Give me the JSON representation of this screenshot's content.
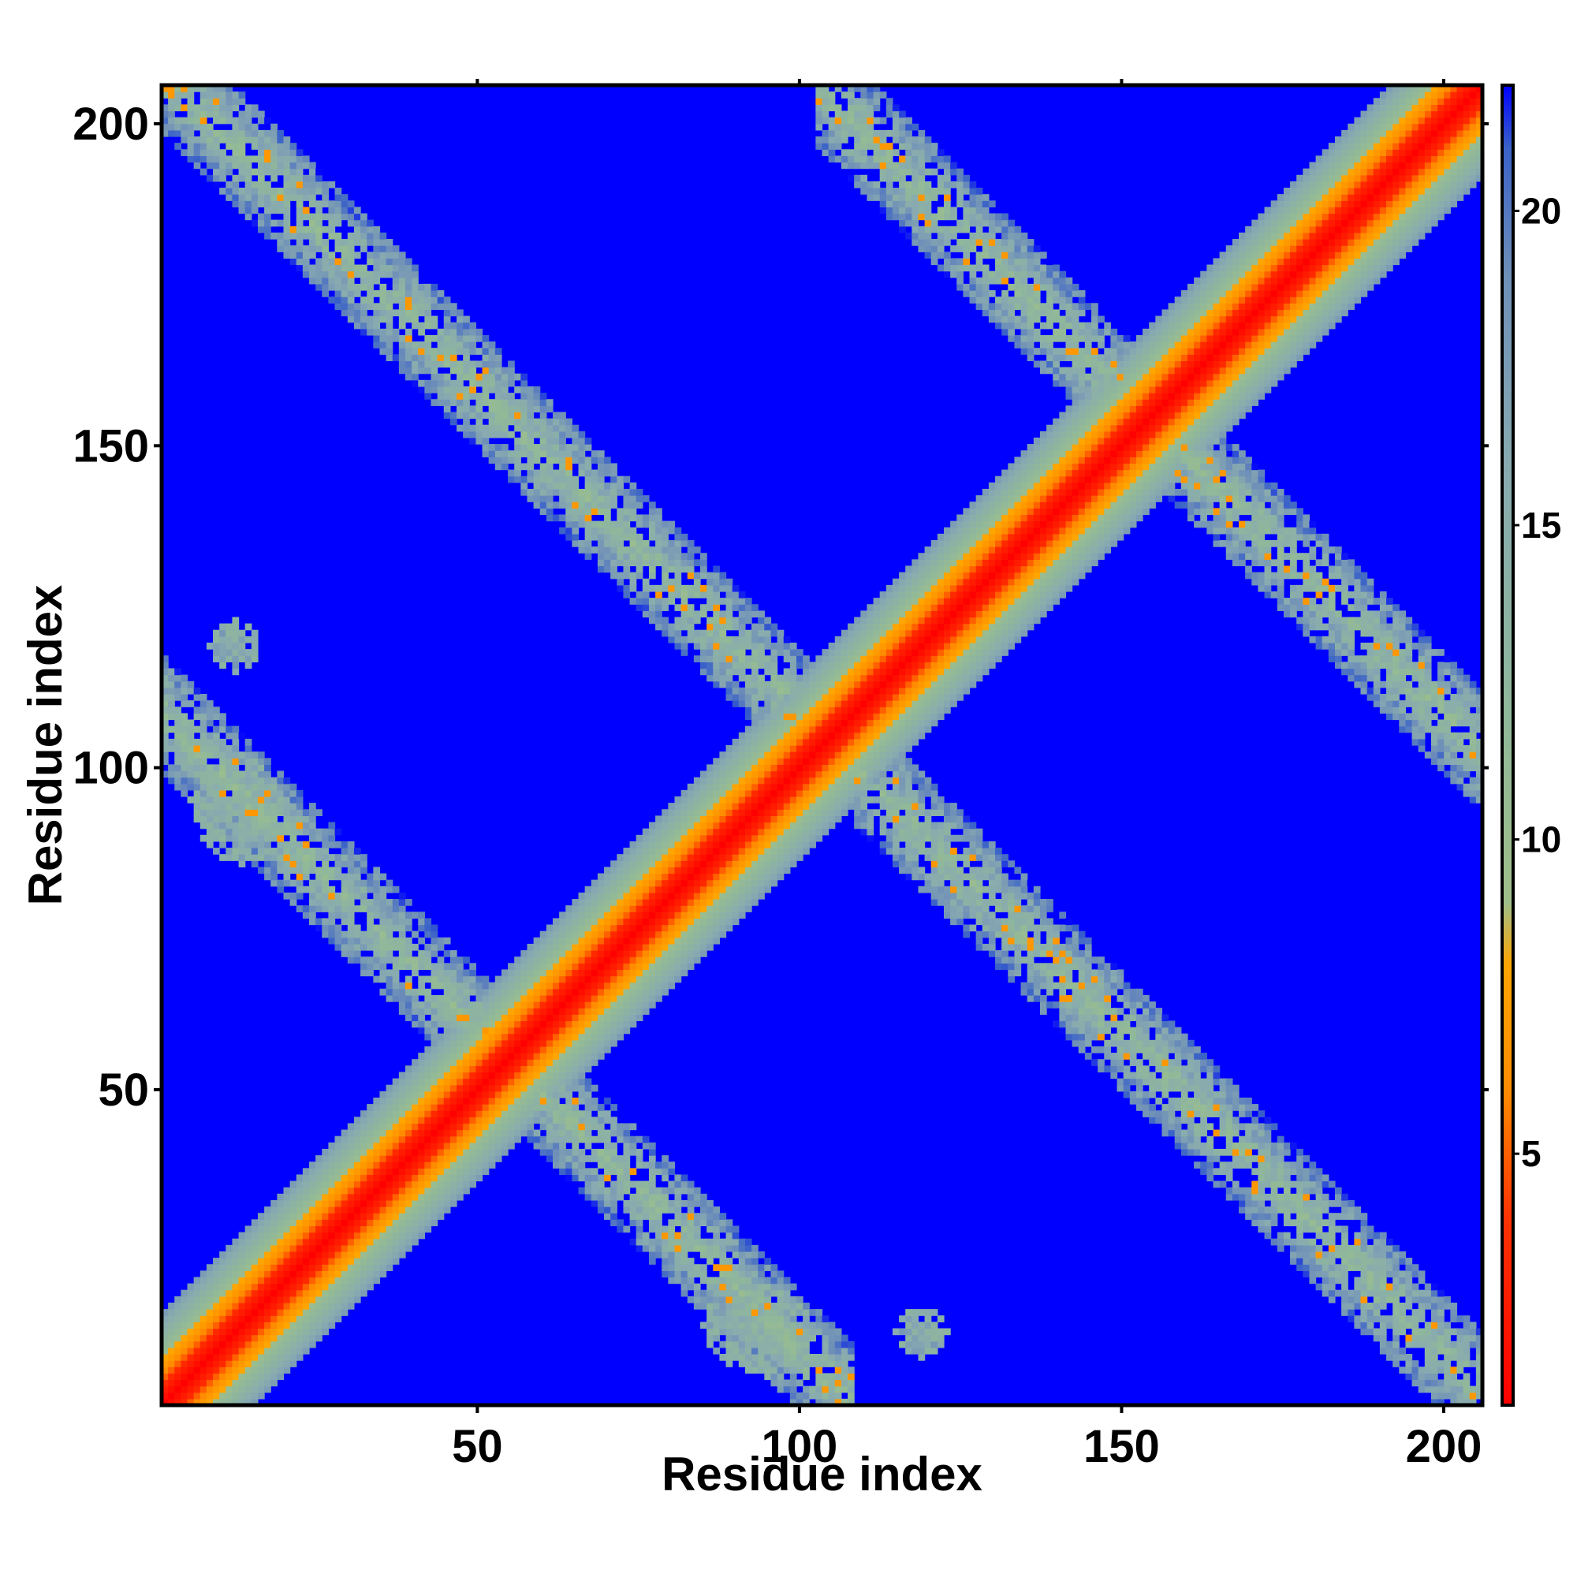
{
  "chart_data": {
    "type": "heatmap",
    "title": "",
    "xlabel": "Residue index",
    "ylabel": "Residue index",
    "xlim": [
      1,
      206
    ],
    "ylim": [
      1,
      206
    ],
    "x_ticks": [
      50,
      100,
      150,
      200
    ],
    "y_ticks": [
      50,
      100,
      150,
      200
    ],
    "x_tick_labels": [
      "50",
      "100",
      "150",
      "200"
    ],
    "y_tick_labels": [
      "50",
      "100",
      "150",
      "200"
    ],
    "colorbar": {
      "range": [
        1,
        22
      ],
      "ticks": [
        5,
        10,
        15,
        20
      ],
      "tick_labels": [
        "5",
        "10",
        "15",
        "20"
      ],
      "colors": [
        {
          "value": 1,
          "color": "#ff0000"
        },
        {
          "value": 4,
          "color": "#ff3300"
        },
        {
          "value": 6,
          "color": "#ff8c00"
        },
        {
          "value": 8,
          "color": "#ffa500"
        },
        {
          "value": 9,
          "color": "#9fbf8a"
        },
        {
          "value": 12,
          "color": "#90b89a"
        },
        {
          "value": 16,
          "color": "#88aab0"
        },
        {
          "value": 19,
          "color": "#6e8fb8"
        },
        {
          "value": 21,
          "color": "#3a62c8"
        },
        {
          "value": 22,
          "color": "#0000ff"
        }
      ]
    },
    "background_value": 22,
    "background_color": "#0000ff",
    "contact_bands": [
      {
        "kind": "diagonal",
        "i0": 1,
        "i1": 206,
        "width_core": 3,
        "width_mid": 7,
        "width_outer": 14
      },
      {
        "kind": "anti",
        "sum": 209,
        "from_x": 1,
        "to_x": 206,
        "half_width": 9
      },
      {
        "kind": "anti",
        "sum": 109,
        "from_x": 1,
        "to_x": 108,
        "half_width": 9
      },
      {
        "kind": "anti",
        "sum": 309,
        "from_x": 103,
        "to_x": 206,
        "half_width": 9
      },
      {
        "kind": "cluster",
        "x": 12,
        "y": 95,
        "r": 7
      },
      {
        "kind": "cluster",
        "x": 92,
        "y": 13,
        "r": 7
      },
      {
        "kind": "cluster",
        "x": 12,
        "y": 119,
        "r": 4
      },
      {
        "kind": "cluster",
        "x": 119,
        "y": 12,
        "r": 4
      }
    ],
    "grid": false,
    "legend": "colorbar right"
  }
}
